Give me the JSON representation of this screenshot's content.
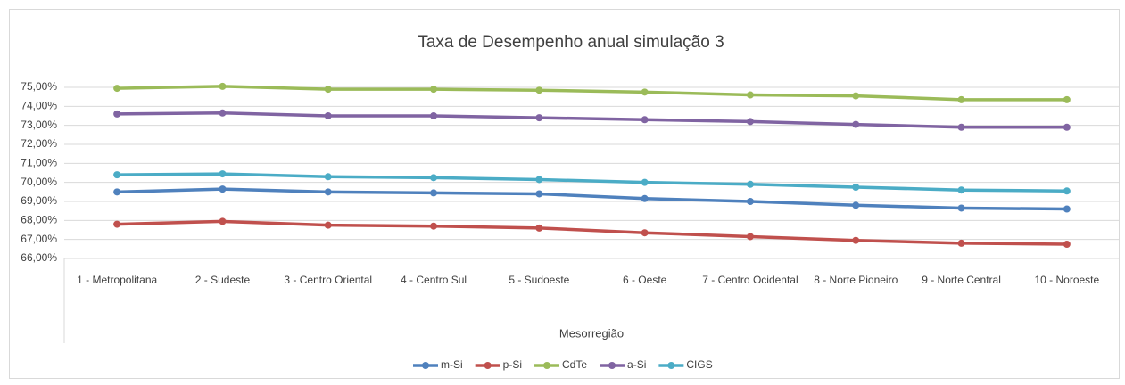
{
  "chart_data": {
    "type": "line",
    "title": "Taxa de Desempenho anual simulação 3",
    "x_label": "Mesorregião",
    "categories": [
      "1 - Metropolitana",
      "2 - Sudeste",
      "3 - Centro Oriental",
      "4 - Centro Sul",
      "5 - Sudoeste",
      "6 - Oeste",
      "7 - Centro Ocidental",
      "8 - Norte Pioneiro",
      "9 - Norte Central",
      "10 - Noroeste"
    ],
    "series": [
      {
        "name": "m-Si",
        "color": "#4f81bd",
        "values": [
          69.5,
          69.65,
          69.5,
          69.45,
          69.4,
          69.15,
          69.0,
          68.8,
          68.65,
          68.6
        ]
      },
      {
        "name": "p-Si",
        "color": "#c0504d",
        "values": [
          67.8,
          67.95,
          67.75,
          67.7,
          67.6,
          67.35,
          67.15,
          66.95,
          66.8,
          66.75
        ]
      },
      {
        "name": "CdTe",
        "color": "#9bbb59",
        "values": [
          74.95,
          75.05,
          74.9,
          74.9,
          74.85,
          74.75,
          74.6,
          74.55,
          74.35,
          74.35
        ]
      },
      {
        "name": "a-Si",
        "color": "#8064a2",
        "values": [
          73.6,
          73.65,
          73.5,
          73.5,
          73.4,
          73.3,
          73.2,
          73.05,
          72.9,
          72.9
        ]
      },
      {
        "name": "CIGS",
        "color": "#4bacc6",
        "values": [
          70.4,
          70.45,
          70.3,
          70.25,
          70.15,
          70.0,
          69.9,
          69.75,
          69.6,
          69.55
        ]
      }
    ],
    "ylim": [
      66,
      75
    ],
    "yticks": [
      {
        "value": 66,
        "label": "66,00%"
      },
      {
        "value": 67,
        "label": "67,00%"
      },
      {
        "value": 68,
        "label": "68,00%"
      },
      {
        "value": 69,
        "label": "69,00%"
      },
      {
        "value": 70,
        "label": "70,00%"
      },
      {
        "value": 71,
        "label": "71,00%"
      },
      {
        "value": 72,
        "label": "72,00%"
      },
      {
        "value": 73,
        "label": "73,00%"
      },
      {
        "value": 74,
        "label": "74,00%"
      },
      {
        "value": 75,
        "label": "75,00%"
      }
    ],
    "grid": true,
    "legend": "bottom"
  }
}
